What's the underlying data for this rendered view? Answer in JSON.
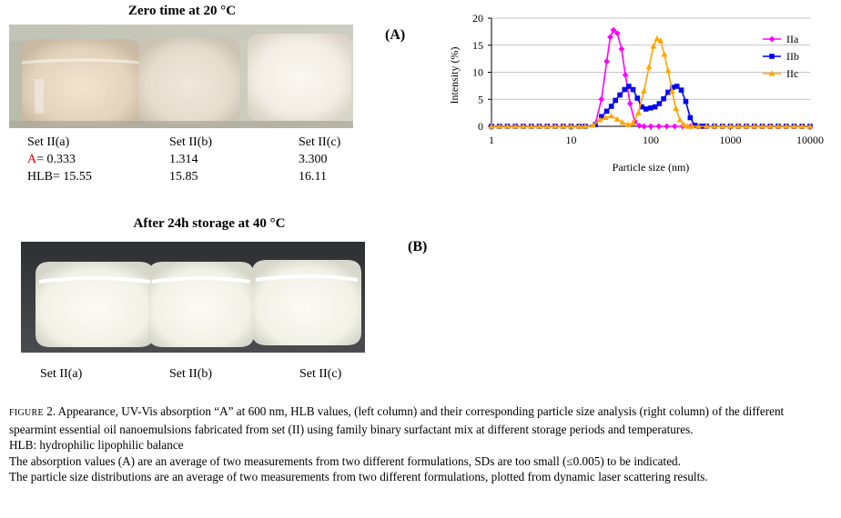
{
  "panelA": {
    "title": "Zero time at 20 °C",
    "label": "(A)",
    "samples": [
      {
        "name": "Set II(a)",
        "absorbance_prefix": "A",
        "absorbance": "= 0.333",
        "hlb": "HLB= 15.55"
      },
      {
        "name": "Set II(b)",
        "absorbance": "1.314",
        "hlb": "15.85"
      },
      {
        "name": "Set II(c)",
        "absorbance": "3.300",
        "hlb": "16.11"
      }
    ]
  },
  "panelB": {
    "title": "After 24h storage at 40 °C",
    "label": "(B)",
    "samples": [
      {
        "name": "Set II(a)"
      },
      {
        "name": "Set II(b)"
      },
      {
        "name": "Set II(c)"
      }
    ]
  },
  "chart_data": {
    "type": "line",
    "xlabel": "Particle size (nm)",
    "ylabel": "Intensity (%)",
    "xscale": "log",
    "xlim": [
      1,
      10000
    ],
    "ylim": [
      0,
      20
    ],
    "xticks": [
      1,
      10,
      100,
      1000,
      10000
    ],
    "xtick_labels": [
      "1",
      "10",
      "100",
      "1000",
      "10000"
    ],
    "yticks": [
      0,
      5,
      10,
      15,
      20
    ],
    "grid": "horizontal",
    "legend": "right",
    "series": [
      {
        "name": "IIa",
        "color": "#ff00ff",
        "marker": "diamond",
        "x": [
          10,
          15,
          20,
          24,
          28,
          31,
          34,
          38,
          43,
          48,
          55,
          63,
          72,
          82
        ],
        "y": [
          0,
          0,
          0.3,
          5,
          12,
          16.5,
          17.8,
          17.2,
          14.3,
          9.5,
          4.2,
          0.9,
          0.1,
          0
        ]
      },
      {
        "name": "IIb",
        "color": "#0000ff",
        "marker": "square",
        "x": [
          15,
          20,
          24,
          28,
          32,
          36,
          41,
          47,
          53,
          60,
          68,
          77,
          87,
          100,
          113,
          128,
          145,
          165,
          188,
          213,
          242,
          275,
          313,
          355,
          403,
          458
        ],
        "y": [
          0,
          0.3,
          1.8,
          2.8,
          3.7,
          4.8,
          5.8,
          6.8,
          7.4,
          6.8,
          5.2,
          3.6,
          3.2,
          3.4,
          3.6,
          4.2,
          5.1,
          6.3,
          7.2,
          7.4,
          6.7,
          4.6,
          1.6,
          0.2,
          0,
          0
        ]
      },
      {
        "name": "IIc",
        "color": "#ffa500",
        "marker": "triangle",
        "x": [
          15,
          19,
          23,
          27,
          32,
          38,
          44,
          52,
          60,
          70,
          82,
          95,
          108,
          120,
          133,
          148,
          165,
          185,
          207,
          232,
          260,
          290,
          330
        ],
        "y": [
          0,
          0.2,
          1.2,
          1.6,
          1.9,
          1.3,
          0.7,
          0.3,
          0.6,
          2.5,
          6.5,
          11,
          14.8,
          16.2,
          15.8,
          13.3,
          10.3,
          6.5,
          3.3,
          1.2,
          0.3,
          0,
          0
        ]
      }
    ]
  },
  "caption": {
    "figure_label": "Figure",
    "figure_rest": " 2. Appearance, UV-Vis absorption “A” at 600 nm, HLB values, (left column) and their corresponding particle size analysis (right column) of the different spearmint essential oil nanoemulsions fabricated from set (II) using family binary surfactant mix at different storage periods and temperatures.",
    "hlb_note": "HLB: hydrophilic lipophilic balance",
    "note1": "The absorption values (A) are an average of two measurements from two different formulations, SDs are too small (≤0.005) to be indicated.",
    "note2": "The particle size distributions are an average of two measurements from two different formulations, plotted from dynamic laser scattering results."
  }
}
